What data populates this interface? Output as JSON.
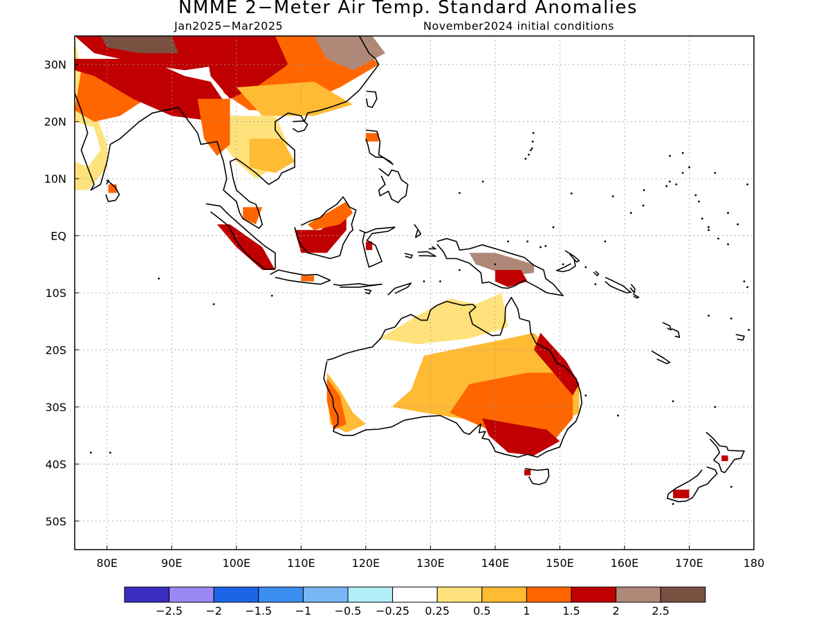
{
  "title": "NMME 2−Meter Air Temp. Standard Anomalies",
  "subtitle_left": "Jan2025−Mar2025",
  "subtitle_right": "November2024 initial conditions",
  "map": {
    "lon_range": [
      75,
      180
    ],
    "lat_range": [
      -55,
      35
    ],
    "lon_ticks": [
      {
        "value": 80,
        "label": "80E"
      },
      {
        "value": 90,
        "label": "90E"
      },
      {
        "value": 100,
        "label": "100E"
      },
      {
        "value": 110,
        "label": "110E"
      },
      {
        "value": 120,
        "label": "120E"
      },
      {
        "value": 130,
        "label": "130E"
      },
      {
        "value": 140,
        "label": "140E"
      },
      {
        "value": 150,
        "label": "150E"
      },
      {
        "value": 160,
        "label": "160E"
      },
      {
        "value": 170,
        "label": "170E"
      },
      {
        "value": 180,
        "label": "180"
      }
    ],
    "lat_ticks": [
      {
        "value": 30,
        "label": "30N"
      },
      {
        "value": 20,
        "label": "20N"
      },
      {
        "value": 10,
        "label": "10N"
      },
      {
        "value": 0,
        "label": "EQ"
      },
      {
        "value": -10,
        "label": "10S"
      },
      {
        "value": -20,
        "label": "20S"
      },
      {
        "value": -30,
        "label": "30S"
      },
      {
        "value": -40,
        "label": "40S"
      },
      {
        "value": -50,
        "label": "50S"
      }
    ],
    "grid": true
  },
  "colorbar": {
    "colors": [
      "#3a2ec0",
      "#9a88f4",
      "#1e64e6",
      "#3c8ef0",
      "#78b6f6",
      "#b2eef8",
      "#ffffff",
      "#ffe27c",
      "#ffbb34",
      "#ff6600",
      "#c00000",
      "#b08878",
      "#7a5040"
    ],
    "labels": [
      "−2.5",
      "−2",
      "−1.5",
      "−1",
      "−0.5",
      "−0.25",
      "0.25",
      "0.5",
      "1",
      "1.5",
      "2",
      "2.5"
    ]
  },
  "chart_data": {
    "type": "heatmap",
    "variable": "2-Meter Air Temp. Standard Anomalies",
    "scale_breaks": [
      -2.5,
      -2,
      -1.5,
      -1,
      -0.5,
      -0.25,
      0.25,
      0.5,
      1,
      1.5,
      2,
      2.5
    ],
    "regions": [
      {
        "id": "south-asia-india",
        "category": 1,
        "poly": [
          [
            75,
            35
          ],
          [
            76,
            28
          ],
          [
            78,
            22
          ],
          [
            80,
            16
          ],
          [
            80,
            12
          ],
          [
            77,
            8
          ],
          [
            75,
            8
          ]
        ]
      },
      {
        "id": "india-moderate-north",
        "category": 3,
        "poly": [
          [
            76,
            29
          ],
          [
            82,
            29
          ],
          [
            86,
            24
          ],
          [
            82,
            21
          ],
          [
            78,
            20
          ],
          [
            75,
            22
          ]
        ]
      },
      {
        "id": "india-light-west",
        "category": 0,
        "poly": [
          [
            75,
            20
          ],
          [
            78,
            19
          ],
          [
            79,
            15
          ],
          [
            77,
            12
          ],
          [
            75,
            13
          ]
        ]
      },
      {
        "id": "india-strong-belt",
        "category": 4,
        "poly": [
          [
            75,
            31
          ],
          [
            86,
            31
          ],
          [
            92,
            28
          ],
          [
            96,
            27
          ],
          [
            99,
            22
          ],
          [
            97,
            20
          ],
          [
            90,
            21
          ],
          [
            84,
            24
          ],
          [
            78,
            28
          ],
          [
            75,
            29
          ]
        ]
      },
      {
        "id": "himalaya-strong",
        "category": 4,
        "poly": [
          [
            75,
            35
          ],
          [
            96,
            35
          ],
          [
            98,
            30
          ],
          [
            92,
            29
          ],
          [
            86,
            30
          ],
          [
            78,
            32
          ]
        ]
      },
      {
        "id": "tibet-extreme-west",
        "category": 6,
        "poly": [
          [
            79,
            35
          ],
          [
            90,
            35
          ],
          [
            91,
            32
          ],
          [
            85,
            32
          ],
          [
            80,
            33
          ]
        ]
      },
      {
        "id": "china-moderate",
        "category": 3,
        "poly": [
          [
            96,
            35
          ],
          [
            118,
            35
          ],
          [
            122,
            30
          ],
          [
            116,
            26
          ],
          [
            108,
            22
          ],
          [
            102,
            22
          ],
          [
            98,
            25
          ],
          [
            97,
            30
          ]
        ]
      },
      {
        "id": "china-strong",
        "category": 4,
        "poly": [
          [
            95,
            35
          ],
          [
            106,
            35
          ],
          [
            108,
            30
          ],
          [
            103,
            26
          ],
          [
            99,
            24
          ],
          [
            96,
            28
          ]
        ]
      },
      {
        "id": "china-light",
        "category": 2,
        "poly": [
          [
            100,
            26
          ],
          [
            112,
            27
          ],
          [
            118,
            23
          ],
          [
            112,
            21
          ],
          [
            104,
            21
          ]
        ]
      },
      {
        "id": "china-extreme-north",
        "category": 5,
        "poly": [
          [
            112,
            35
          ],
          [
            121,
            35
          ],
          [
            123,
            32
          ],
          [
            118,
            29
          ],
          [
            114,
            31
          ]
        ]
      },
      {
        "id": "indochina-light",
        "category": 1,
        "poly": [
          [
            98,
            21
          ],
          [
            106,
            21
          ],
          [
            108,
            16
          ],
          [
            106,
            12
          ],
          [
            103,
            10
          ],
          [
            100,
            13
          ],
          [
            98,
            16
          ]
        ]
      },
      {
        "id": "indochina-moderate",
        "category": 2,
        "poly": [
          [
            102,
            17
          ],
          [
            107,
            17
          ],
          [
            109,
            13
          ],
          [
            106,
            11
          ],
          [
            102,
            12
          ]
        ]
      },
      {
        "id": "burma-moderate",
        "category": 3,
        "poly": [
          [
            94,
            24
          ],
          [
            99,
            24
          ],
          [
            99,
            16
          ],
          [
            97,
            14
          ],
          [
            95,
            17
          ]
        ]
      },
      {
        "id": "sri-lanka",
        "category": 3,
        "poly": [
          [
            80.2,
            9
          ],
          [
            81.5,
            9
          ],
          [
            81.5,
            7.5
          ],
          [
            80.2,
            7.5
          ]
        ]
      },
      {
        "id": "philippines-luzon",
        "category": 3,
        "poly": [
          [
            120,
            18
          ],
          [
            122,
            18
          ],
          [
            122,
            16.5
          ],
          [
            120,
            16.5
          ]
        ]
      },
      {
        "id": "sumatra-strong",
        "category": 4,
        "poly": [
          [
            97,
            2
          ],
          [
            99,
            2
          ],
          [
            104,
            -2
          ],
          [
            106,
            -6
          ],
          [
            104,
            -6
          ],
          [
            100,
            -2
          ]
        ]
      },
      {
        "id": "malay-moderate",
        "category": 3,
        "poly": [
          [
            101,
            5
          ],
          [
            104,
            5
          ],
          [
            103,
            2
          ],
          [
            101,
            3
          ]
        ]
      },
      {
        "id": "borneo-strong",
        "category": 4,
        "poly": [
          [
            109,
            1
          ],
          [
            113,
            1
          ],
          [
            117,
            4
          ],
          [
            117,
            1
          ],
          [
            114,
            -3
          ],
          [
            110,
            -3
          ]
        ]
      },
      {
        "id": "borneo-moderate",
        "category": 3,
        "poly": [
          [
            111,
            2
          ],
          [
            117,
            6
          ],
          [
            118,
            4
          ],
          [
            116,
            2
          ],
          [
            112,
            1
          ]
        ]
      },
      {
        "id": "java-moderate",
        "category": 3,
        "poly": [
          [
            110,
            -7
          ],
          [
            112,
            -7
          ],
          [
            112,
            -8
          ],
          [
            110,
            -8
          ]
        ]
      },
      {
        "id": "sulawesi-strong",
        "category": 4,
        "poly": [
          [
            120,
            -1
          ],
          [
            121,
            -1
          ],
          [
            121,
            -2.5
          ],
          [
            120,
            -2.5
          ]
        ]
      },
      {
        "id": "new-guinea-extreme",
        "category": 5,
        "poly": [
          [
            136,
            -3
          ],
          [
            140,
            -3
          ],
          [
            146,
            -5
          ],
          [
            146,
            -6.5
          ],
          [
            142,
            -7
          ],
          [
            137,
            -5
          ]
        ]
      },
      {
        "id": "new-guinea-strong",
        "category": 4,
        "poly": [
          [
            140,
            -6
          ],
          [
            144,
            -6
          ],
          [
            145,
            -8
          ],
          [
            142,
            -9
          ],
          [
            140,
            -8
          ]
        ]
      },
      {
        "id": "australia-base",
        "category": 0,
        "poly": [
          [
            114,
            -22
          ],
          [
            122,
            -18
          ],
          [
            128,
            -14
          ],
          [
            133,
            -11
          ],
          [
            137,
            -12
          ],
          [
            141,
            -10
          ],
          [
            143,
            -13
          ],
          [
            146,
            -17
          ],
          [
            150,
            -22
          ],
          [
            153,
            -26
          ],
          [
            153,
            -31
          ],
          [
            150,
            -36
          ],
          [
            146,
            -38.5
          ],
          [
            140,
            -38
          ],
          [
            135,
            -34
          ],
          [
            129,
            -31
          ],
          [
            124,
            -33
          ],
          [
            118,
            -35
          ],
          [
            115,
            -34
          ],
          [
            114,
            -29
          ]
        ]
      },
      {
        "id": "australia-light-north",
        "category": 1,
        "poly": [
          [
            122,
            -18
          ],
          [
            128,
            -14
          ],
          [
            133,
            -11
          ],
          [
            137,
            -12
          ],
          [
            141,
            -10
          ],
          [
            142,
            -16
          ],
          [
            136,
            -18
          ],
          [
            128,
            -19
          ]
        ]
      },
      {
        "id": "australia-moderate-west",
        "category": 2,
        "poly": [
          [
            114,
            -24
          ],
          [
            116,
            -27
          ],
          [
            118,
            -31
          ],
          [
            120,
            -33
          ],
          [
            117,
            -34.5
          ],
          [
            114.5,
            -33
          ],
          [
            114,
            -28
          ]
        ]
      },
      {
        "id": "australia-strong-west",
        "category": 3,
        "poly": [
          [
            114,
            -25
          ],
          [
            116,
            -28
          ],
          [
            117,
            -33
          ],
          [
            115,
            -34
          ],
          [
            114,
            -29
          ]
        ]
      },
      {
        "id": "australia-moderate-central",
        "category": 2,
        "poly": [
          [
            129,
            -21
          ],
          [
            142,
            -18
          ],
          [
            146,
            -17
          ],
          [
            150,
            -22
          ],
          [
            153,
            -26
          ],
          [
            153,
            -31
          ],
          [
            148,
            -34
          ],
          [
            140,
            -33
          ],
          [
            129,
            -31
          ],
          [
            124,
            -30
          ],
          [
            127,
            -27
          ]
        ]
      },
      {
        "id": "australia-strong-east",
        "category": 3,
        "poly": [
          [
            136,
            -26
          ],
          [
            145,
            -24
          ],
          [
            150,
            -24
          ],
          [
            152,
            -27
          ],
          [
            152,
            -32
          ],
          [
            149,
            -36
          ],
          [
            140,
            -34.5
          ],
          [
            133,
            -31
          ]
        ]
      },
      {
        "id": "australia-strong-se",
        "category": 4,
        "poly": [
          [
            138,
            -32
          ],
          [
            143,
            -33
          ],
          [
            148,
            -34
          ],
          [
            150,
            -36
          ],
          [
            146,
            -38.5
          ],
          [
            142,
            -38
          ],
          [
            139,
            -35
          ]
        ]
      },
      {
        "id": "australia-strong-coast",
        "category": 4,
        "poly": [
          [
            147,
            -17
          ],
          [
            151,
            -22
          ],
          [
            153,
            -26
          ],
          [
            152,
            -28
          ],
          [
            149,
            -24
          ],
          [
            146,
            -20
          ]
        ]
      },
      {
        "id": "tasmania",
        "category": 4,
        "poly": [
          [
            144.5,
            -41
          ],
          [
            145.5,
            -41
          ],
          [
            145.5,
            -42
          ],
          [
            144.5,
            -42
          ]
        ]
      },
      {
        "id": "new-zealand-south",
        "category": 4,
        "poly": [
          [
            167.5,
            -44.5
          ],
          [
            170,
            -44.5
          ],
          [
            170,
            -46
          ],
          [
            167.5,
            -46
          ]
        ]
      },
      {
        "id": "new-zealand-north",
        "category": 4,
        "poly": [
          [
            175,
            -38.5
          ],
          [
            176,
            -38.5
          ],
          [
            176,
            -39.5
          ],
          [
            175,
            -39.5
          ]
        ]
      }
    ]
  }
}
